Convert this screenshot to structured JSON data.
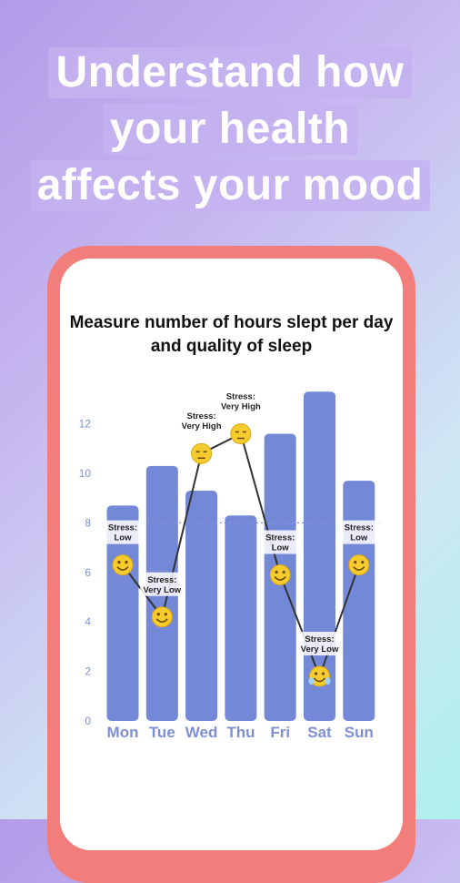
{
  "headline": {
    "lines": [
      "Understand how",
      "your health",
      "affects your mood"
    ]
  },
  "chart_data": {
    "type": "bar",
    "title": "Measure number of hours slept per day and quality of sleep",
    "categories": [
      "Mon",
      "Tue",
      "Wed",
      "Thu",
      "Fri",
      "Sat",
      "Sun"
    ],
    "values": [
      8.7,
      10.3,
      9.3,
      8.3,
      11.6,
      13.3,
      9.7
    ],
    "overlay_line": {
      "name": "quality of sleep",
      "values": [
        6.3,
        4.2,
        10.8,
        11.6,
        5.9,
        1.8,
        6.3
      ],
      "markers": [
        "smile",
        "grin",
        "tired",
        "tired",
        "smile",
        "laugh",
        "smile"
      ]
    },
    "annotations": [
      [
        "Stress:",
        "Low"
      ],
      [
        "Stress:",
        "Very Low"
      ],
      [
        "Stress:",
        "Very High"
      ],
      [
        "Stress:",
        "Very High"
      ],
      [
        "Stress:",
        "Low"
      ],
      [
        "Stress:",
        "Very Low"
      ],
      [
        "Stress:",
        "Low"
      ]
    ],
    "yticks": [
      0,
      2,
      4,
      6,
      8,
      10,
      12
    ],
    "ylim": [
      0,
      14
    ],
    "reference_line": 8,
    "xlabel": "",
    "ylabel": "",
    "grid": false,
    "colors": {
      "bar": "#7488d8",
      "tick": "#7f8fd3",
      "line": "#333333",
      "emoji": "#f6cb2e"
    }
  }
}
